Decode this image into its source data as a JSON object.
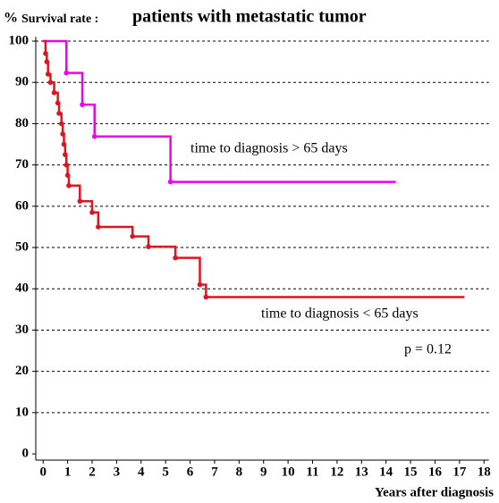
{
  "chart_data": {
    "type": "step",
    "y_unit": "%",
    "subtitle": "Survival rate :",
    "title": "patients with metastatic tumor",
    "xlabel": "Years after diagnosis",
    "xlim": [
      -0.3,
      18.2
    ],
    "xticks": [
      0,
      1,
      2,
      3,
      4,
      5,
      6,
      7,
      8,
      9,
      10,
      11,
      12,
      13,
      14,
      15,
      16,
      17,
      18
    ],
    "ylim": [
      -1.5,
      101
    ],
    "yticks": [
      0,
      10,
      20,
      30,
      40,
      50,
      60,
      70,
      80,
      90,
      100
    ],
    "grid": true,
    "series": [
      {
        "name": "time to diagnosis > 65 days",
        "color": "#ee00ee",
        "x": [
          0,
          0.95,
          1.6,
          2.1,
          5.2,
          14.4
        ],
        "values": [
          100,
          92.3,
          84.6,
          76.9,
          65.9,
          65.9
        ]
      },
      {
        "name": "time to diagnosis < 65 days",
        "color": "#e0141e",
        "x": [
          0,
          0.1,
          0.15,
          0.2,
          0.3,
          0.45,
          0.6,
          0.65,
          0.75,
          0.8,
          0.85,
          0.9,
          0.95,
          1.0,
          1.05,
          1.5,
          2.0,
          2.25,
          3.65,
          4.3,
          5.4,
          6.4,
          6.65,
          17.2
        ],
        "values": [
          100,
          97,
          95,
          92,
          90,
          87.5,
          85,
          82.5,
          80,
          77.5,
          75,
          72.5,
          70,
          67.5,
          65,
          61.2,
          58.5,
          55,
          52.7,
          50.2,
          47.5,
          41,
          38,
          38
        ]
      }
    ],
    "annotations": [
      "p = 0.12"
    ]
  }
}
